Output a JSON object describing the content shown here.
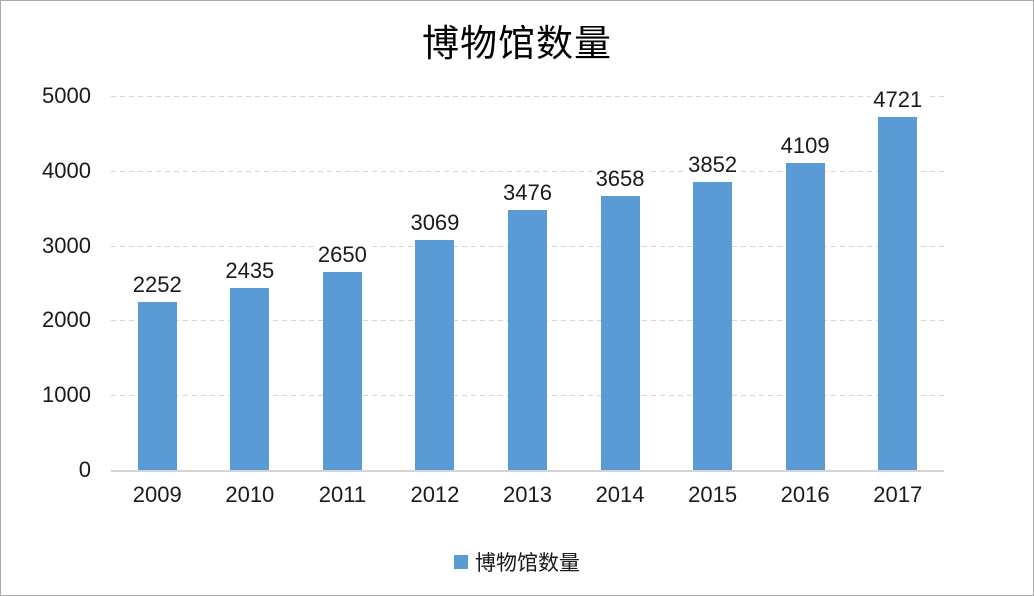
{
  "chart_data": {
    "type": "bar",
    "title": "博物馆数量",
    "categories": [
      "2009",
      "2010",
      "2011",
      "2012",
      "2013",
      "2014",
      "2015",
      "2016",
      "2017"
    ],
    "values": [
      2252,
      2435,
      2650,
      3069,
      3476,
      3658,
      3852,
      4109,
      4721
    ],
    "series_name": "博物馆数量",
    "xlabel": "",
    "ylabel": "",
    "ylim": [
      0,
      5000
    ],
    "yticks": [
      0,
      1000,
      2000,
      3000,
      4000,
      5000
    ],
    "grid": true,
    "data_labels": true,
    "legend": {
      "position": "bottom",
      "entries": [
        "博物馆数量"
      ]
    }
  },
  "colors": {
    "bar": "#5B9BD5",
    "gridline": "#D6D6D6",
    "axis_line": "#D4D4D4",
    "text": "#1A1A1A",
    "background": "#FFFFFF",
    "border": "#ABABAB"
  }
}
